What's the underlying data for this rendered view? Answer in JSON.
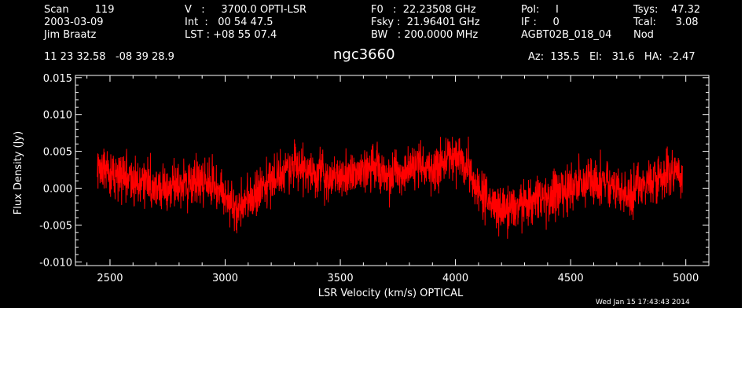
{
  "header": {
    "col1": [
      "Scan        119",
      "2003-03-09",
      "Jim Braatz"
    ],
    "col2": [
      "V   :     3700.0 OPTI-LSR",
      "Int  :   00 54 47.5",
      "LST : +08 55 07.4"
    ],
    "col3": [
      "F0   :  22.23508 GHz",
      "Fsky :  21.96401 GHz",
      "BW   : 200.0000 MHz"
    ],
    "col4": [
      "Pol:     I",
      "IF :     0",
      "AGBT02B_018_04"
    ],
    "col5": [
      "Tsys:    47.32",
      "Tcal:      3.08",
      "Nod"
    ],
    "coords": "11 23 32.58   -08 39 28.9",
    "source": "ngc3660",
    "azelha": "Az:  135.5   El:   31.6   HA:  -2.47",
    "timestamp": "Wed Jan 15 17:43:43 2014"
  },
  "chart_data": {
    "type": "line",
    "xlabel": "LSR Velocity (km/s) OPTICAL",
    "ylabel": "Flux Density (Jy)",
    "xlim": [
      2350,
      5100
    ],
    "ylim": [
      -0.0105,
      0.0153
    ],
    "xticks": [
      2500,
      3000,
      3500,
      4000,
      4500,
      5000
    ],
    "xtick_labels": [
      "2500",
      "3000",
      "3500",
      "4000",
      "4500",
      "5000"
    ],
    "yticks": [
      -0.01,
      -0.005,
      0.0,
      0.005,
      0.01,
      0.015
    ],
    "ytick_labels": [
      "-0.010",
      "-0.005",
      "0.000",
      "0.005",
      "0.010",
      "0.015"
    ],
    "series_color": "#ff0000",
    "series": [
      {
        "x": [
          2445,
          2500,
          2550,
          2600,
          2650,
          2700,
          2750,
          2800,
          2850,
          2900,
          2950,
          3000,
          3050,
          3100,
          3150,
          3200,
          3250,
          3300,
          3350,
          3400,
          3450,
          3500,
          3550,
          3600,
          3650,
          3700,
          3750,
          3800,
          3850,
          3900,
          3950,
          4000,
          4050,
          4100,
          4150,
          4200,
          4250,
          4300,
          4350,
          4400,
          4450,
          4500,
          4550,
          4600,
          4650,
          4700,
          4750,
          4800,
          4850,
          4900,
          4950,
          4985
        ],
        "y": [
          0.0025,
          0.002,
          0.0015,
          0.001,
          0.0005,
          0.0,
          0.0,
          0.0005,
          0.0008,
          0.001,
          0.0005,
          -0.001,
          -0.003,
          -0.002,
          0.0,
          0.001,
          0.002,
          0.003,
          0.0025,
          0.002,
          0.0015,
          0.0015,
          0.002,
          0.0025,
          0.0025,
          0.002,
          0.002,
          0.0025,
          0.003,
          0.003,
          0.0035,
          0.004,
          0.0025,
          0.0,
          -0.002,
          -0.003,
          -0.0025,
          -0.002,
          -0.0015,
          -0.001,
          -0.0005,
          0.0,
          0.0005,
          0.001,
          0.001,
          0.0,
          -0.001,
          0.0005,
          0.001,
          0.0015,
          0.002,
          0.0015
        ]
      }
    ]
  }
}
